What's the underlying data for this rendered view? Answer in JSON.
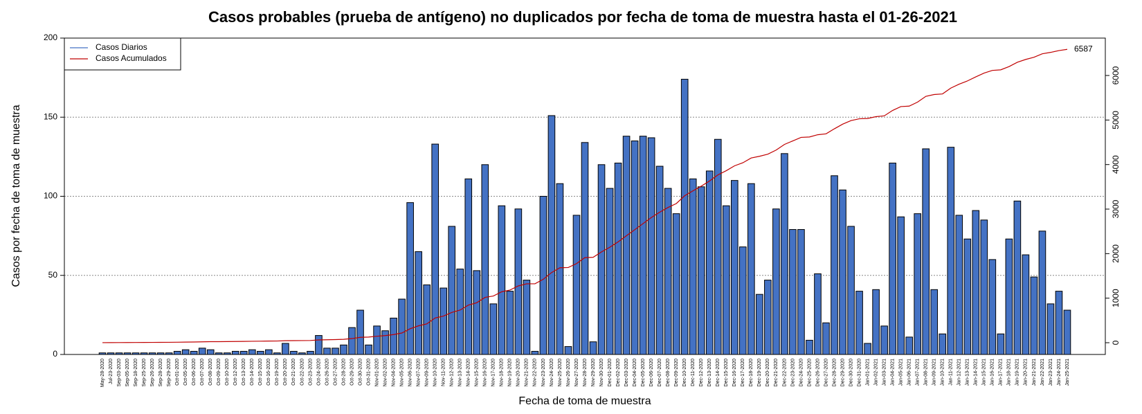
{
  "chart_data": {
    "type": "bar",
    "title": "Casos probables (prueba de antígeno) no duplicados por fecha de toma de muestra hasta el 01-26-2021",
    "xlabel": "Fecha de toma de muestra",
    "ylabel": "Casos por fecha de toma de muestra",
    "categories": [
      "May-28-2020",
      "Jul-23-2020",
      "Sep-03-2020",
      "Sep-05-2020",
      "Sep-18-2020",
      "Sep-25-2020",
      "Sep-26-2020",
      "Sep-28-2020",
      "Sep-29-2020",
      "Oct-01-2020",
      "Oct-05-2020",
      "Oct-06-2020",
      "Oct-07-2020",
      "Oct-08-2020",
      "Oct-09-2020",
      "Oct-10-2020",
      "Oct-12-2020",
      "Oct-13-2020",
      "Oct-14-2020",
      "Oct-15-2020",
      "Oct-16-2020",
      "Oct-19-2020",
      "Oct-20-2020",
      "Oct-21-2020",
      "Oct-22-2020",
      "Oct-23-2020",
      "Oct-24-2020",
      "Oct-26-2020",
      "Oct-27-2020",
      "Oct-28-2020",
      "Oct-29-2020",
      "Oct-30-2020",
      "Oct-31-2020",
      "Nov-01-2020",
      "Nov-02-2020",
      "Nov-04-2020",
      "Nov-05-2020",
      "Nov-06-2020",
      "Nov-07-2020",
      "Nov-09-2020",
      "Nov-10-2020",
      "Nov-11-2020",
      "Nov-12-2020",
      "Nov-13-2020",
      "Nov-14-2020",
      "Nov-15-2020",
      "Nov-16-2020",
      "Nov-17-2020",
      "Nov-18-2020",
      "Nov-19-2020",
      "Nov-20-2020",
      "Nov-21-2020",
      "Nov-22-2020",
      "Nov-23-2020",
      "Nov-24-2020",
      "Nov-25-2020",
      "Nov-26-2020",
      "Nov-27-2020",
      "Nov-28-2020",
      "Nov-29-2020",
      "Nov-30-2020",
      "Dec-01-2020",
      "Dec-02-2020",
      "Dec-03-2020",
      "Dec-04-2020",
      "Dec-05-2020",
      "Dec-06-2020",
      "Dec-07-2020",
      "Dec-08-2020",
      "Dec-09-2020",
      "Dec-10-2020",
      "Dec-11-2020",
      "Dec-12-2020",
      "Dec-13-2020",
      "Dec-14-2020",
      "Dec-15-2020",
      "Dec-16-2020",
      "Dec-17-2020",
      "Dec-18-2020",
      "Dec-19-2020",
      "Dec-20-2020",
      "Dec-21-2020",
      "Dec-22-2020",
      "Dec-23-2020",
      "Dec-24-2020",
      "Dec-25-2020",
      "Dec-26-2020",
      "Dec-27-2020",
      "Dec-28-2020",
      "Dec-29-2020",
      "Dec-30-2020",
      "Dec-31-2020",
      "Jan-01-2021",
      "Jan-02-2021",
      "Jan-03-2021",
      "Jan-04-2021",
      "Jan-05-2021",
      "Jan-06-2021",
      "Jan-07-2021",
      "Jan-08-2021",
      "Jan-09-2021",
      "Jan-10-2021",
      "Jan-11-2021",
      "Jan-12-2021",
      "Jan-13-2021",
      "Jan-14-2021",
      "Jan-15-2021",
      "Jan-16-2021",
      "Jan-17-2021",
      "Jan-18-2021",
      "Jan-19-2021",
      "Jan-20-2021",
      "Jan-21-2021",
      "Jan-22-2021",
      "Jan-23-2021",
      "Jan-24-2021",
      "Jan-25-2021"
    ],
    "series": [
      {
        "name": "Casos Diarios",
        "color": "#4472c4",
        "values": [
          1,
          1,
          1,
          1,
          1,
          1,
          1,
          1,
          1,
          2,
          3,
          2,
          4,
          3,
          1,
          1,
          2,
          2,
          3,
          2,
          3,
          1,
          7,
          2,
          1,
          2,
          12,
          4,
          4,
          6,
          17,
          28,
          6,
          18,
          15,
          23,
          35,
          96,
          65,
          44,
          133,
          42,
          81,
          54,
          111,
          53,
          120,
          32,
          94,
          40,
          92,
          47,
          2,
          100,
          151,
          108,
          5,
          88,
          134,
          8,
          120,
          105,
          121,
          138,
          135,
          138,
          137,
          119,
          105,
          89,
          174,
          111,
          106,
          116,
          136,
          94,
          110,
          68,
          108,
          38,
          47,
          92,
          127,
          79,
          79,
          9,
          51,
          20,
          113,
          104,
          81,
          40,
          7,
          41,
          18,
          121,
          87,
          11,
          89,
          130,
          41,
          13,
          131,
          88,
          73,
          91,
          85,
          60,
          13,
          73,
          97,
          63,
          49,
          78,
          32,
          40,
          28
        ]
      },
      {
        "name": "Casos Acumulados",
        "color": "#c00000",
        "axis": "y2",
        "values": [
          1,
          2,
          3,
          4,
          5,
          6,
          7,
          8,
          9,
          11,
          14,
          16,
          20,
          23,
          24,
          25,
          27,
          29,
          32,
          34,
          37,
          38,
          45,
          47,
          48,
          50,
          62,
          66,
          70,
          76,
          93,
          121,
          127,
          145,
          160,
          183,
          218,
          314,
          379,
          423,
          556,
          598,
          679,
          733,
          844,
          897,
          1017,
          1049,
          1143,
          1183,
          1275,
          1322,
          1324,
          1424,
          1575,
          1683,
          1688,
          1776,
          1910,
          1918,
          2038,
          2143,
          2264,
          2402,
          2537,
          2675,
          2812,
          2931,
          3036,
          3125,
          3299,
          3410,
          3516,
          3632,
          3768,
          3862,
          3972,
          4040,
          4148,
          4186,
          4233,
          4325,
          4452,
          4531,
          4610,
          4619,
          4670,
          4690,
          4803,
          4907,
          4988,
          5028,
          5035,
          5076,
          5094,
          5215,
          5302,
          5313,
          5402,
          5532,
          5573,
          5586,
          5717,
          5805,
          5878,
          5969,
          6054,
          6114,
          6127,
          6200,
          6297,
          6360,
          6409,
          6487,
          6519,
          6559,
          6587
        ]
      }
    ],
    "ylim": [
      0,
      200
    ],
    "yticks": [
      0,
      50,
      100,
      150,
      200
    ],
    "y2lim": [
      -264,
      6840
    ],
    "y2ticks": [
      0,
      1000,
      2000,
      3000,
      4000,
      5000,
      6000
    ],
    "grid": true,
    "legend": "top-left"
  }
}
